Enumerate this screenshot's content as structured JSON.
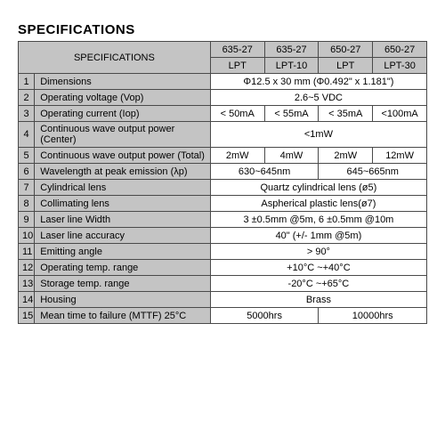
{
  "title": "SPECIFICATIONS",
  "header": {
    "spec": "SPECIFICATIONS",
    "c1a": "635-27",
    "c1b": "LPT",
    "c2a": "635-27",
    "c2b": "LPT-10",
    "c3a": "650-27",
    "c3b": "LPT",
    "c4a": "650-27",
    "c4b": "LPT-30"
  },
  "rows": {
    "r1": {
      "n": "1",
      "p": "Dimensions",
      "v": "Φ12.5 x 30 mm (Φ0.492\" x 1.181\")"
    },
    "r2": {
      "n": "2",
      "p": "Operating voltage (Vop)",
      "v": "2.6~5 VDC"
    },
    "r3": {
      "n": "3",
      "p": "Operating current (Iop)",
      "v1": "< 50mA",
      "v2": "< 55mA",
      "v3": "< 35mA",
      "v4": "<100mA"
    },
    "r4": {
      "n": "4",
      "p": "Continuous wave output power (Center)",
      "v": "<1mW"
    },
    "r5": {
      "n": "5",
      "p": "Continuous wave output power (Total)",
      "v1": "2mW",
      "v2": "4mW",
      "v3": "2mW",
      "v4": "12mW"
    },
    "r6": {
      "n": "6",
      "p": "Wavelength at peak emission (λp)",
      "v12": "630~645nm",
      "v34": "645~665nm"
    },
    "r7": {
      "n": "7",
      "p": "Cylindrical lens",
      "v": "Quartz cylindrical lens (ø5)"
    },
    "r8": {
      "n": "8",
      "p": "Collimating lens",
      "v": "Aspherical plastic lens(ø7)"
    },
    "r9": {
      "n": "9",
      "p": "Laser line Width",
      "v": "3 ±0.5mm @5m,   6 ±0.5mm @10m"
    },
    "r10": {
      "n": "10",
      "p": "Laser line accuracy",
      "v": "40\" (+/- 1mm @5m)"
    },
    "r11": {
      "n": "11",
      "p": "Emitting angle",
      "v": "> 90°"
    },
    "r12": {
      "n": "12",
      "p": "Operating temp. range",
      "v": "+10°C ~+40°C"
    },
    "r13": {
      "n": "13",
      "p": "Storage temp. range",
      "v": "-20°C ~+65°C"
    },
    "r14": {
      "n": "14",
      "p": "Housing",
      "v": "Brass"
    },
    "r15": {
      "n": "15",
      "p": "Mean time to failure (MTTF)  25°C",
      "v12": "5000hrs",
      "v34": "10000hrs"
    }
  }
}
